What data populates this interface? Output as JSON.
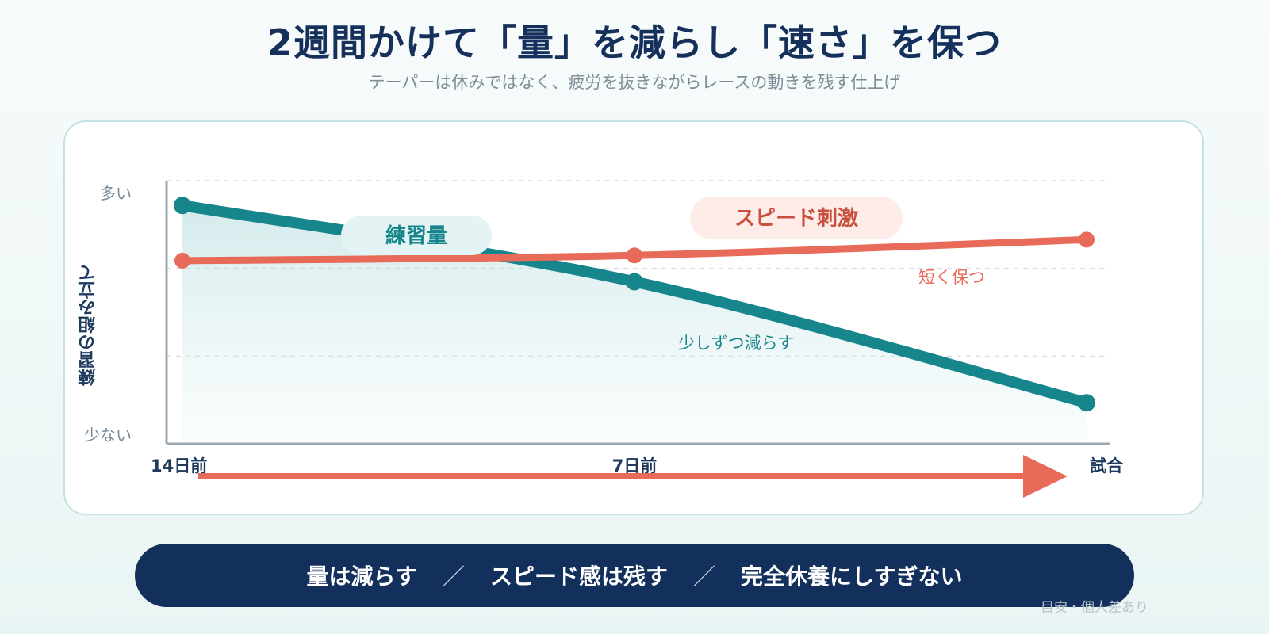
{
  "title": "2週間かけて「量」を減らし「速さ」を保つ",
  "subtitle": "テーパーは休みではなく、疲労を抜きながらレースの動きを残す仕上げ",
  "chart_data": {
    "type": "line",
    "x": [
      "14日前",
      "7日前",
      "試合"
    ],
    "ylabel": "練習の組み立て",
    "ytick_labels": {
      "top": "多い",
      "bottom": "少ない"
    },
    "ylim": [
      0,
      100
    ],
    "grid": true,
    "series": [
      {
        "name": "練習量",
        "values": [
          90,
          61,
          15
        ],
        "color": "#17868c",
        "annotation": "少しずつ減らす"
      },
      {
        "name": "スピード刺激",
        "values": [
          69,
          71,
          77
        ],
        "color": "#e86a58",
        "annotation": "短く保つ"
      }
    ]
  },
  "banner": {
    "items": [
      "量は減らす",
      "スピード感は残す",
      "完全休養にしすぎない"
    ],
    "separator": "／"
  },
  "footnote": "目安・個人差あり"
}
